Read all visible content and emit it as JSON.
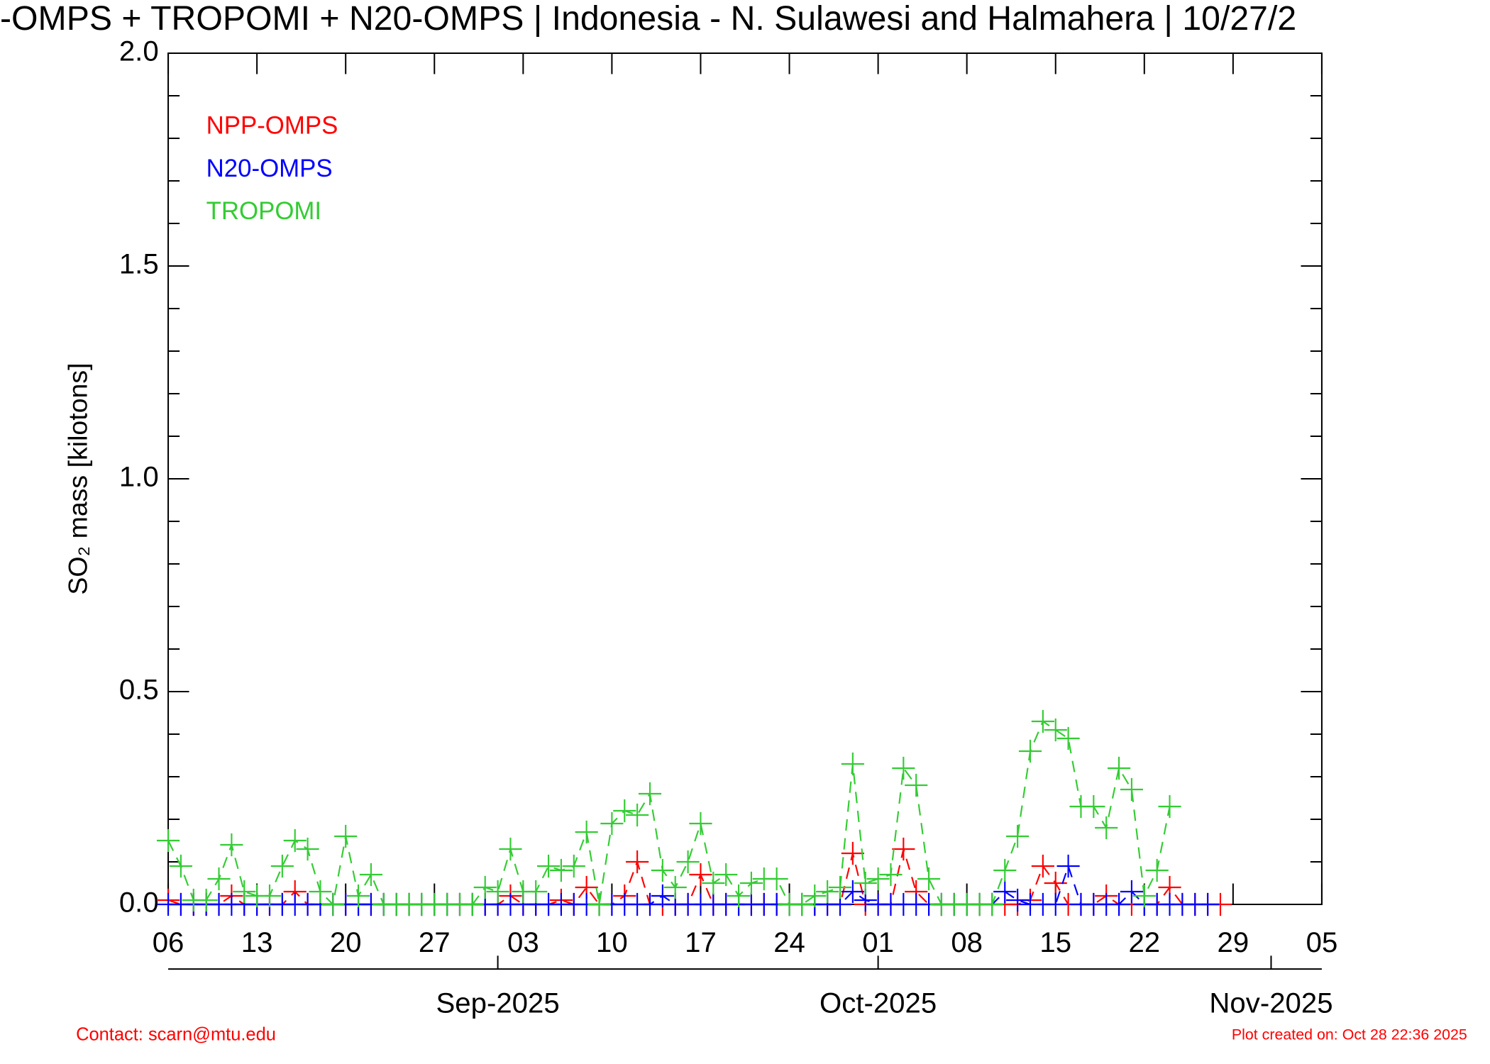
{
  "chart_data": {
    "type": "line",
    "title": "-OMPS + TROPOMI + N20-OMPS | Indonesia - N. Sulawesi and Halmahera | 10/27/2",
    "y_label": "SO₂ mass [kilotons]",
    "contact": "Contact: scarn@mtu.edu",
    "created": "Plot created on: Oct 28 22:36 2025",
    "x": [
      "2025-08-06",
      "2025-08-07",
      "2025-08-08",
      "2025-08-09",
      "2025-08-10",
      "2025-08-11",
      "2025-08-12",
      "2025-08-13",
      "2025-08-14",
      "2025-08-15",
      "2025-08-16",
      "2025-08-17",
      "2025-08-18",
      "2025-08-19",
      "2025-08-20",
      "2025-08-21",
      "2025-08-22",
      "2025-08-23",
      "2025-08-24",
      "2025-08-25",
      "2025-08-26",
      "2025-08-27",
      "2025-08-28",
      "2025-08-29",
      "2025-08-30",
      "2025-08-31",
      "2025-09-01",
      "2025-09-02",
      "2025-09-03",
      "2025-09-04",
      "2025-09-05",
      "2025-09-06",
      "2025-09-07",
      "2025-09-08",
      "2025-09-09",
      "2025-09-10",
      "2025-09-11",
      "2025-09-12",
      "2025-09-13",
      "2025-09-14",
      "2025-09-15",
      "2025-09-16",
      "2025-09-17",
      "2025-09-18",
      "2025-09-19",
      "2025-09-20",
      "2025-09-21",
      "2025-09-22",
      "2025-09-23",
      "2025-09-24",
      "2025-09-25",
      "2025-09-26",
      "2025-09-27",
      "2025-09-28",
      "2025-09-29",
      "2025-09-30",
      "2025-10-01",
      "2025-10-02",
      "2025-10-03",
      "2025-10-04",
      "2025-10-05",
      "2025-10-06",
      "2025-10-07",
      "2025-10-08",
      "2025-10-09",
      "2025-10-10",
      "2025-10-11",
      "2025-10-12",
      "2025-10-13",
      "2025-10-14",
      "2025-10-15",
      "2025-10-16",
      "2025-10-17",
      "2025-10-18",
      "2025-10-19",
      "2025-10-20",
      "2025-10-21",
      "2025-10-22",
      "2025-10-23",
      "2025-10-24",
      "2025-10-25",
      "2025-10-26",
      "2025-10-27",
      "2025-10-28"
    ],
    "series": [
      {
        "name": "NPP-OMPS",
        "color": "#ff0000",
        "values": [
          0.01,
          0,
          0,
          0,
          0,
          0.02,
          0,
          0,
          0,
          0,
          0.03,
          0,
          0,
          0,
          0,
          0,
          0,
          0,
          0,
          0,
          0,
          0,
          0,
          0,
          0,
          0,
          0,
          0.02,
          0,
          0,
          0,
          0.01,
          0,
          0.04,
          0,
          0,
          0.02,
          0.1,
          0,
          0,
          0,
          0,
          0.07,
          0,
          0,
          0,
          0,
          0,
          0,
          0,
          0,
          0,
          0,
          0,
          0.12,
          0,
          0,
          0,
          0.13,
          0.03,
          0,
          0,
          0,
          0,
          0,
          0,
          0,
          0,
          0.01,
          0.09,
          0.05,
          0,
          0,
          0,
          0.02,
          0,
          0,
          0,
          0,
          0.04,
          0,
          0,
          0,
          0
        ]
      },
      {
        "name": "N20-OMPS",
        "color": "#0000ff",
        "values": [
          0,
          0,
          0,
          0,
          0,
          0,
          0,
          0,
          0,
          0,
          0,
          0,
          0,
          0,
          0,
          0,
          0,
          0,
          0,
          0,
          0,
          0,
          0,
          0,
          0,
          0,
          0,
          0,
          0,
          0,
          0,
          0,
          0,
          0,
          0,
          0,
          0,
          0,
          0,
          0.02,
          0,
          0,
          0,
          0,
          0,
          0,
          0,
          0,
          0,
          0,
          0,
          0,
          0,
          0,
          0.03,
          0.01,
          0,
          0,
          0,
          0,
          0,
          0,
          0,
          0,
          0,
          0,
          0.03,
          0.01,
          0,
          0,
          0,
          0.09,
          0,
          0,
          0,
          0,
          0.03,
          0,
          0,
          0,
          0,
          0,
          0,
          null
        ]
      },
      {
        "name": "TROPOMI",
        "color": "#33cc33",
        "values": [
          0.15,
          0.09,
          0.01,
          0.01,
          0.06,
          0.14,
          0.03,
          0.02,
          0.02,
          0.09,
          0.15,
          0.13,
          0.03,
          0,
          0.16,
          0.02,
          0.07,
          0,
          0,
          0,
          0,
          0,
          0,
          0,
          0,
          0.04,
          0.03,
          0.13,
          0.03,
          0.03,
          0.09,
          0.08,
          0.09,
          0.17,
          0,
          0.19,
          0.22,
          0.21,
          0.26,
          0.08,
          0.04,
          0.1,
          0.19,
          0.05,
          0.07,
          0.02,
          0.05,
          0.06,
          0.06,
          0,
          0,
          0.02,
          0.03,
          0.04,
          0.33,
          0.05,
          0.06,
          0.07,
          0.32,
          0.28,
          0.06,
          0,
          0,
          0,
          0,
          0,
          0.08,
          0.16,
          0.36,
          0.43,
          0.41,
          0.39,
          0.23,
          0.23,
          0.18,
          0.32,
          0.27,
          0.02,
          0.08,
          0.23,
          null,
          null,
          null,
          null
        ]
      }
    ],
    "xlim": [
      "2025-08-06",
      "2025-11-05"
    ],
    "xticks": [
      {
        "value": "2025-08-06",
        "label": "06"
      },
      {
        "value": "2025-08-13",
        "label": "13"
      },
      {
        "value": "2025-08-20",
        "label": "20"
      },
      {
        "value": "2025-08-27",
        "label": "27"
      },
      {
        "value": "2025-09-03",
        "label": "03"
      },
      {
        "value": "2025-09-10",
        "label": "10"
      },
      {
        "value": "2025-09-17",
        "label": "17"
      },
      {
        "value": "2025-09-24",
        "label": "24"
      },
      {
        "value": "2025-10-01",
        "label": "01"
      },
      {
        "value": "2025-10-08",
        "label": "08"
      },
      {
        "value": "2025-10-15",
        "label": "15"
      },
      {
        "value": "2025-10-22",
        "label": "22"
      },
      {
        "value": "2025-10-29",
        "label": "29"
      },
      {
        "value": "2025-11-05",
        "label": "05"
      }
    ],
    "xticks_month": [
      {
        "value": "2025-09-01",
        "label": "Sep-2025"
      },
      {
        "value": "2025-10-01",
        "label": "Oct-2025"
      },
      {
        "value": "2025-11-01",
        "label": "Nov-2025"
      }
    ],
    "ylim": [
      0,
      2
    ],
    "yticks": [
      {
        "value": 0,
        "label": "0.0"
      },
      0.5,
      {
        "value": 1,
        "label": "1.0"
      },
      1.5,
      {
        "value": 2,
        "label": "2.0"
      }
    ],
    "yminorticks": [
      0.1,
      0.2,
      0.3,
      0.4,
      0.6,
      0.7,
      0.8,
      0.9,
      1.1,
      1.2,
      1.3,
      1.4,
      1.6,
      1.7,
      1.8,
      1.9
    ],
    "legend": "upper left"
  }
}
